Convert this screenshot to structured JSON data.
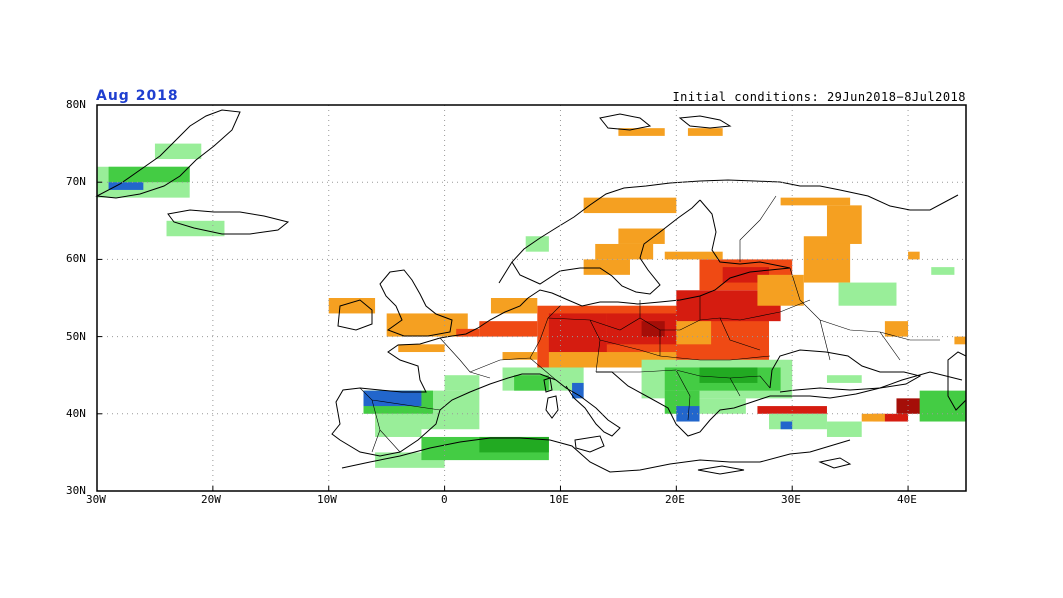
{
  "title": {
    "left": "Aug 2018",
    "right": "Initial conditions: 29Jun2018−8Jul2018"
  },
  "colors": {
    "title_left": "#1f3fd0",
    "green_light": "#99ee99",
    "green": "#44cc44",
    "green_dark": "#22aa22",
    "blue": "#2266cc",
    "orange": "#f5a021",
    "red_orange": "#ef4a14",
    "red": "#d51c10",
    "dark_red": "#a50e08",
    "coast": "#000000",
    "grid": "#999999"
  },
  "map": {
    "lon_range": [
      -30,
      45
    ],
    "lat_range": [
      30,
      80
    ],
    "lat_labels": [
      "80N",
      "70N",
      "60N",
      "50N",
      "40N",
      "30N"
    ],
    "lon_labels": [
      "30W",
      "20W",
      "10W",
      "0",
      "10E",
      "20E",
      "30E",
      "40E"
    ]
  },
  "anomalies": [
    {
      "cat": "orange",
      "lon0": -10,
      "lat0": 53,
      "lon1": -6,
      "lat1": 55
    },
    {
      "cat": "orange",
      "lon0": -5,
      "lat0": 50,
      "lon1": 2,
      "lat1": 53
    },
    {
      "cat": "orange",
      "lon0": -4,
      "lat0": 48,
      "lon1": 0,
      "lat1": 49
    },
    {
      "cat": "red_orange",
      "lon0": 1,
      "lat0": 50,
      "lon1": 3,
      "lat1": 51
    },
    {
      "cat": "red_orange",
      "lon0": 3,
      "lat0": 50,
      "lon1": 8,
      "lat1": 52
    },
    {
      "cat": "red_orange",
      "lon0": 8,
      "lat0": 46,
      "lon1": 28,
      "lat1": 54
    },
    {
      "cat": "red",
      "lon0": 9,
      "lat0": 48,
      "lon1": 14,
      "lat1": 53
    },
    {
      "cat": "red",
      "lon0": 14,
      "lat0": 49,
      "lon1": 20,
      "lat1": 53
    },
    {
      "cat": "dark_red",
      "lon0": 17,
      "lat0": 50,
      "lon1": 19,
      "lat1": 52
    },
    {
      "cat": "red",
      "lon0": 20,
      "lat0": 52,
      "lon1": 29,
      "lat1": 56
    },
    {
      "cat": "orange",
      "lon0": 4,
      "lat0": 53,
      "lon1": 8,
      "lat1": 55
    },
    {
      "cat": "orange",
      "lon0": 20,
      "lat0": 49,
      "lon1": 23,
      "lat1": 52
    },
    {
      "cat": "orange",
      "lon0": 9,
      "lat0": 46,
      "lon1": 20,
      "lat1": 48
    },
    {
      "cat": "orange",
      "lon0": 5,
      "lat0": 47,
      "lon1": 8,
      "lat1": 48
    },
    {
      "cat": "red_orange",
      "lon0": 22,
      "lat0": 56,
      "lon1": 30,
      "lat1": 60
    },
    {
      "cat": "red",
      "lon0": 24,
      "lat0": 57,
      "lon1": 28,
      "lat1": 59
    },
    {
      "cat": "orange",
      "lon0": 27,
      "lat0": 54,
      "lon1": 31,
      "lat1": 58
    },
    {
      "cat": "orange",
      "lon0": 31,
      "lat0": 57,
      "lon1": 35,
      "lat1": 63
    },
    {
      "cat": "orange",
      "lon0": 33,
      "lat0": 62,
      "lon1": 36,
      "lat1": 67
    },
    {
      "cat": "orange",
      "lon0": 29,
      "lat0": 67,
      "lon1": 35,
      "lat1": 68
    },
    {
      "cat": "orange",
      "lon0": 12,
      "lat0": 58,
      "lon1": 16,
      "lat1": 60
    },
    {
      "cat": "orange",
      "lon0": 13,
      "lat0": 60,
      "lon1": 18,
      "lat1": 62
    },
    {
      "cat": "orange",
      "lon0": 12,
      "lat0": 66,
      "lon1": 20,
      "lat1": 68
    },
    {
      "cat": "orange",
      "lon0": 15,
      "lat0": 62,
      "lon1": 19,
      "lat1": 64
    },
    {
      "cat": "orange",
      "lon0": 19,
      "lat0": 60,
      "lon1": 24,
      "lat1": 61
    },
    {
      "cat": "orange",
      "lon0": 15,
      "lat0": 76,
      "lon1": 19,
      "lat1": 77
    },
    {
      "cat": "orange",
      "lon0": 21,
      "lat0": 76,
      "lon1": 24,
      "lat1": 77
    },
    {
      "cat": "orange",
      "lon0": 38,
      "lat0": 50,
      "lon1": 40,
      "lat1": 52
    },
    {
      "cat": "orange",
      "lon0": 40,
      "lat0": 60,
      "lon1": 41,
      "lat1": 61
    },
    {
      "cat": "orange",
      "lon0": 44,
      "lat0": 49,
      "lon1": 45,
      "lat1": 50
    },
    {
      "cat": "orange",
      "lon0": -6,
      "lat0": 38,
      "lon1": -5,
      "lat1": 40
    },
    {
      "cat": "red",
      "lon0": 27,
      "lat0": 40,
      "lon1": 33,
      "lat1": 41
    },
    {
      "cat": "red",
      "lon0": 37,
      "lat0": 39,
      "lon1": 40,
      "lat1": 40
    },
    {
      "cat": "dark_red",
      "lon0": 39,
      "lat0": 40,
      "lon1": 42,
      "lat1": 42
    },
    {
      "cat": "orange",
      "lon0": 36,
      "lat0": 39,
      "lon1": 38,
      "lat1": 40
    },
    {
      "cat": "green_light",
      "lon0": -5,
      "lat0": 38,
      "lon1": 3,
      "lat1": 43
    },
    {
      "cat": "green",
      "lon0": -7,
      "lat0": 40,
      "lon1": -1,
      "lat1": 43
    },
    {
      "cat": "blue",
      "lon0": -7,
      "lat0": 41,
      "lon1": -2,
      "lat1": 43
    },
    {
      "cat": "green_light",
      "lon0": -6,
      "lat0": 37,
      "lon1": -2,
      "lat1": 40
    },
    {
      "cat": "green_light",
      "lon0": 0,
      "lat0": 43,
      "lon1": 3,
      "lat1": 45
    },
    {
      "cat": "green_light",
      "lon0": -6,
      "lat0": 33,
      "lon1": 0,
      "lat1": 35
    },
    {
      "cat": "green",
      "lon0": -2,
      "lat0": 34,
      "lon1": 9,
      "lat1": 37
    },
    {
      "cat": "green_dark",
      "lon0": 3,
      "lat0": 35,
      "lon1": 9,
      "lat1": 37
    },
    {
      "cat": "green_light",
      "lon0": 5,
      "lat0": 43,
      "lon1": 12,
      "lat1": 46
    },
    {
      "cat": "green",
      "lon0": 6,
      "lat0": 43,
      "lon1": 9,
      "lat1": 45
    },
    {
      "cat": "blue",
      "lon0": 11,
      "lat0": 42,
      "lon1": 12,
      "lat1": 44
    },
    {
      "cat": "green_light",
      "lon0": 17,
      "lat0": 42,
      "lon1": 30,
      "lat1": 47
    },
    {
      "cat": "green",
      "lon0": 19,
      "lat0": 43,
      "lon1": 29,
      "lat1": 46
    },
    {
      "cat": "green_dark",
      "lon0": 22,
      "lat0": 44,
      "lon1": 27,
      "lat1": 46
    },
    {
      "cat": "green",
      "lon0": 19,
      "lat0": 40,
      "lon1": 22,
      "lat1": 43
    },
    {
      "cat": "blue",
      "lon0": 20,
      "lat0": 39,
      "lon1": 22,
      "lat1": 41
    },
    {
      "cat": "green_light",
      "lon0": 22,
      "lat0": 40,
      "lon1": 26,
      "lat1": 42
    },
    {
      "cat": "green_light",
      "lon0": 28,
      "lat0": 38,
      "lon1": 33,
      "lat1": 40
    },
    {
      "cat": "blue",
      "lon0": 29,
      "lat0": 38,
      "lon1": 30,
      "lat1": 39
    },
    {
      "cat": "green_light",
      "lon0": 33,
      "lat0": 37,
      "lon1": 36,
      "lat1": 39
    },
    {
      "cat": "green_light",
      "lon0": 33,
      "lat0": 44,
      "lon1": 36,
      "lat1": 45
    },
    {
      "cat": "green",
      "lon0": 41,
      "lat0": 39,
      "lon1": 45,
      "lat1": 43
    },
    {
      "cat": "green_light",
      "lon0": 34,
      "lat0": 54,
      "lon1": 39,
      "lat1": 57
    },
    {
      "cat": "green_light",
      "lon0": 42,
      "lat0": 58,
      "lon1": 44,
      "lat1": 59
    },
    {
      "cat": "green_light",
      "lon0": -24,
      "lat0": 63,
      "lon1": -19,
      "lat1": 65
    },
    {
      "cat": "green_light",
      "lon0": -30,
      "lat0": 68,
      "lon1": -22,
      "lat1": 72
    },
    {
      "cat": "green",
      "lon0": -29,
      "lat0": 70,
      "lon1": -22,
      "lat1": 72
    },
    {
      "cat": "blue",
      "lon0": -29,
      "lat0": 69,
      "lon1": -26,
      "lat1": 70
    },
    {
      "cat": "green_light",
      "lon0": -25,
      "lat0": 73,
      "lon1": -21,
      "lat1": 75
    },
    {
      "cat": "green_light",
      "lon0": 7,
      "lat0": 61,
      "lon1": 9,
      "lat1": 63
    }
  ]
}
